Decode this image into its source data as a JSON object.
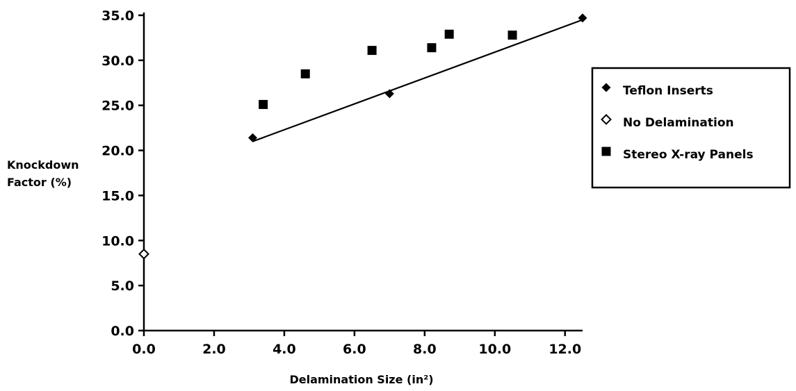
{
  "chart_data": {
    "type": "scatter",
    "title": "",
    "xlabel": "Delamination Size (in²)",
    "ylabel_lines": [
      "Knockdown",
      "Factor (%)"
    ],
    "xlim": [
      0,
      12.5
    ],
    "ylim": [
      0,
      35
    ],
    "x_ticks": [
      "0.0",
      "2.0",
      "4.0",
      "6.0",
      "8.0",
      "10.0",
      "12.0"
    ],
    "y_ticks": [
      "0.0",
      "5.0",
      "10.0",
      "15.0",
      "20.0",
      "25.0",
      "30.0",
      "35.0"
    ],
    "grid": false,
    "legend_position": "right",
    "series": [
      {
        "name": "Teflon Inserts",
        "marker": "filled-diamond",
        "color": "#000000",
        "points": [
          [
            3.1,
            21.4
          ],
          [
            7.0,
            26.3
          ],
          [
            12.5,
            34.7
          ]
        ]
      },
      {
        "name": "No Delamination",
        "marker": "open-diamond",
        "color": "#000000",
        "points": [
          [
            0.0,
            8.5
          ]
        ]
      },
      {
        "name": "Stereo X-ray Panels",
        "marker": "filled-square",
        "color": "#000000",
        "points": [
          [
            3.4,
            25.1
          ],
          [
            4.6,
            28.5
          ],
          [
            6.5,
            31.1
          ],
          [
            8.2,
            31.4
          ],
          [
            8.7,
            32.9
          ],
          [
            10.5,
            32.8
          ]
        ]
      }
    ],
    "trendline": {
      "series": "Teflon Inserts",
      "x": [
        3.1,
        12.5
      ],
      "y": [
        21.0,
        34.5
      ]
    }
  }
}
